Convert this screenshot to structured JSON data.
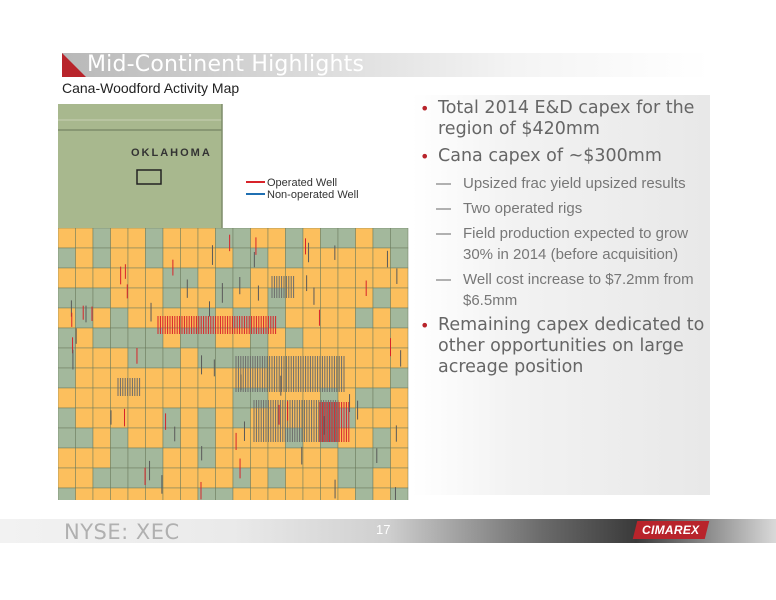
{
  "header": {
    "title": "Mid-Continent Highlights",
    "subtitle": "Cana-Woodford Activity Map"
  },
  "map": {
    "state_label": "OKLAHOMA",
    "legend": [
      {
        "label": "Operated Well",
        "color": "#d8232a"
      },
      {
        "label": "Non-operated Well",
        "color": "#1f6fb2"
      }
    ],
    "colors": {
      "land": "#a8b88e",
      "acreage": "#fcbf5d",
      "grey_cell": "#a3b89c",
      "border": "#6b7a5c"
    }
  },
  "bullets": [
    {
      "level": 1,
      "text": "Total 2014 E&D capex for the region of $420mm"
    },
    {
      "level": 1,
      "text": "Cana capex of ~$300mm"
    },
    {
      "level": 2,
      "text": "Upsized frac yield upsized results"
    },
    {
      "level": 2,
      "text": "Two operated rigs"
    },
    {
      "level": 2,
      "text": "Field production expected to grow 30% in 2014 (before acquisition)"
    },
    {
      "level": 2,
      "text": "Well cost increase to $7.2mm from $6.5mm"
    },
    {
      "level": 1,
      "text": "Remaining capex dedicated to other opportunities on large acreage position"
    }
  ],
  "footer": {
    "ticker": "NYSE: XEC",
    "page_number": "17",
    "logo": "CIMAREX"
  },
  "colors": {
    "accent": "#b8242b"
  }
}
